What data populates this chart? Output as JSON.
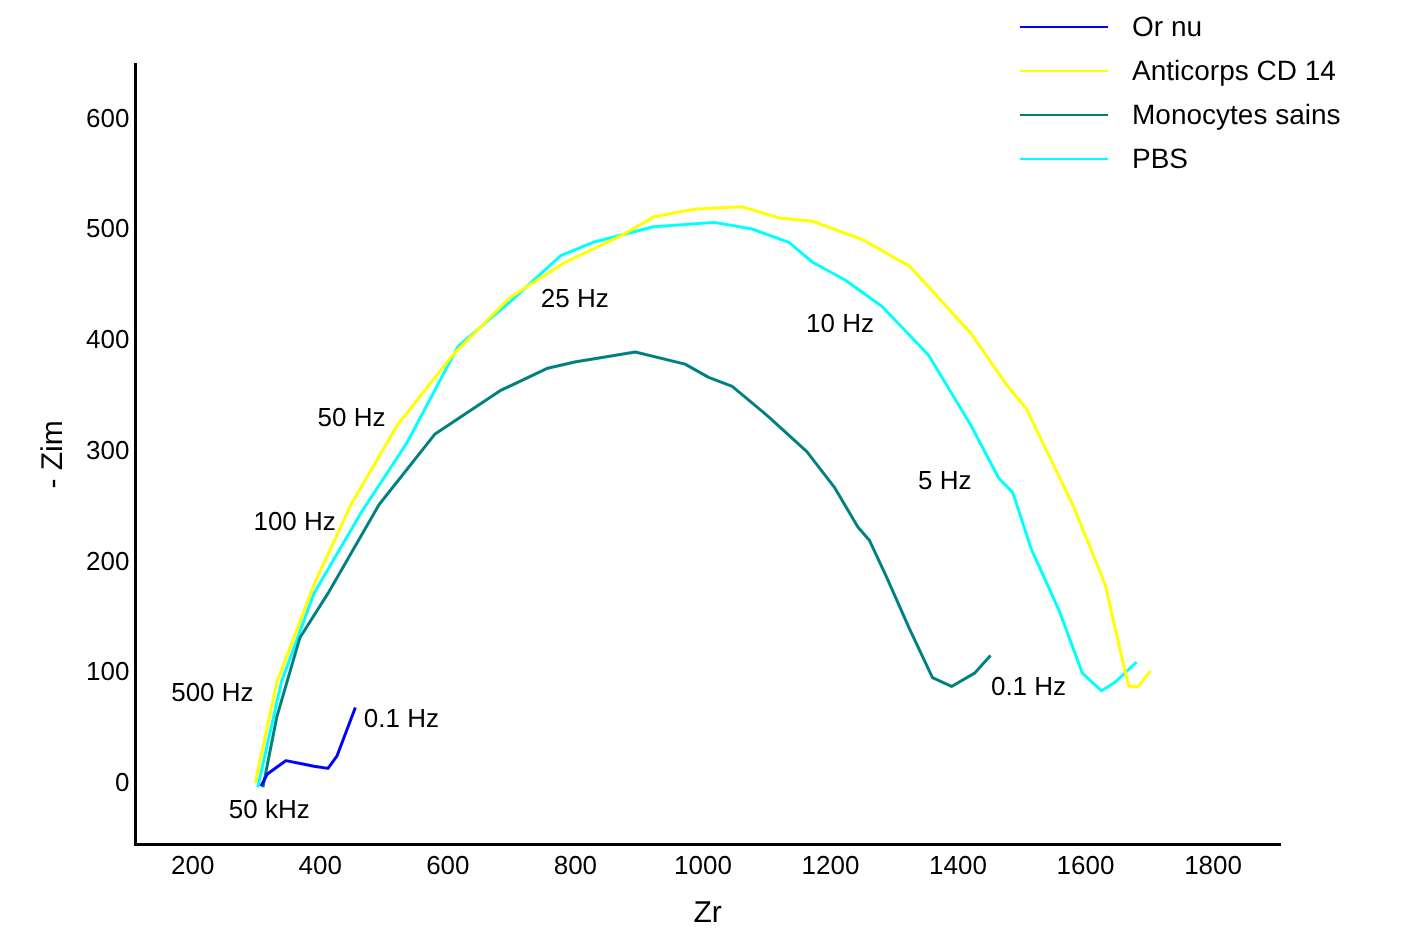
{
  "chart_data": {
    "type": "line",
    "xlabel": "Zr",
    "ylabel": "- Zim",
    "xlim": [
      110,
      1905
    ],
    "ylim": [
      -55,
      650
    ],
    "xticks": [
      200,
      400,
      600,
      800,
      1000,
      1200,
      1400,
      1600,
      1800
    ],
    "yticks": [
      0,
      100,
      200,
      300,
      400,
      500,
      600
    ],
    "grid": false,
    "legend": "top right",
    "marker": "none",
    "line_style": "solid",
    "series": [
      {
        "name": "Or nu",
        "color": "#0000ff",
        "x": [
          307,
          317,
          346,
          390,
          412,
          426,
          455
        ],
        "values": [
          -2,
          9,
          21,
          16,
          14,
          25,
          69
        ]
      },
      {
        "name": "Anticorps CD 14",
        "color": "#ffff00",
        "x": [
          298,
          332,
          390,
          448,
          521,
          609,
          697,
          784,
          872,
          923,
          989,
          1062,
          1120,
          1172,
          1252,
          1325,
          1420,
          1478,
          1507,
          1580,
          1631,
          1653,
          1668,
          1683,
          1702
        ],
        "values": [
          1,
          92,
          180,
          252,
          324,
          388,
          439,
          471,
          495,
          512,
          519,
          521,
          511,
          508,
          491,
          467,
          407,
          359,
          339,
          252,
          180,
          124,
          88,
          88,
          102
        ]
      },
      {
        "name": "Monocytes sains",
        "color": "#008080",
        "x": [
          310,
          332,
          368,
          412,
          492,
          580,
          682,
          755,
          799,
          894,
          972,
          1009,
          1046,
          1104,
          1163,
          1206,
          1243,
          1261,
          1287,
          1324,
          1360,
          1390,
          1426,
          1451
        ],
        "values": [
          -3,
          61,
          132,
          172,
          252,
          316,
          355,
          375,
          381,
          390,
          379,
          367,
          359,
          331,
          300,
          268,
          232,
          220,
          188,
          140,
          96,
          88,
          100,
          116
        ]
      },
      {
        "name": "PBS",
        "color": "#00ffff",
        "x": [
          302,
          339,
          390,
          463,
          536,
          616,
          697,
          777,
          828,
          923,
          1018,
          1077,
          1135,
          1172,
          1223,
          1281,
          1354,
          1420,
          1464,
          1486,
          1515,
          1559,
          1595,
          1625,
          1647,
          1680
        ],
        "values": [
          -3,
          92,
          172,
          244,
          308,
          395,
          435,
          477,
          489,
          503,
          507,
          501,
          489,
          471,
          455,
          431,
          387,
          324,
          276,
          263,
          212,
          156,
          100,
          84,
          92,
          110
        ]
      }
    ],
    "annotations": [
      {
        "text": "500 Hz",
        "x": 328,
        "y": 81
      },
      {
        "text": "50 kHz",
        "x": 298,
        "y": 1
      },
      {
        "text": "0.1 Hz",
        "x": 455,
        "y": 69
      },
      {
        "text": "100 Hz",
        "x": 435,
        "y": 236
      },
      {
        "text": "50 Hz",
        "x": 521,
        "y": 324
      },
      {
        "text": "25 Hz",
        "x": 777,
        "y": 477
      },
      {
        "text": "10 Hz",
        "x": 1281,
        "y": 431
      },
      {
        "text": "5 Hz",
        "x": 1464,
        "y": 276
      },
      {
        "text": "0.1 Hz",
        "x": 1451,
        "y": 116
      }
    ]
  }
}
